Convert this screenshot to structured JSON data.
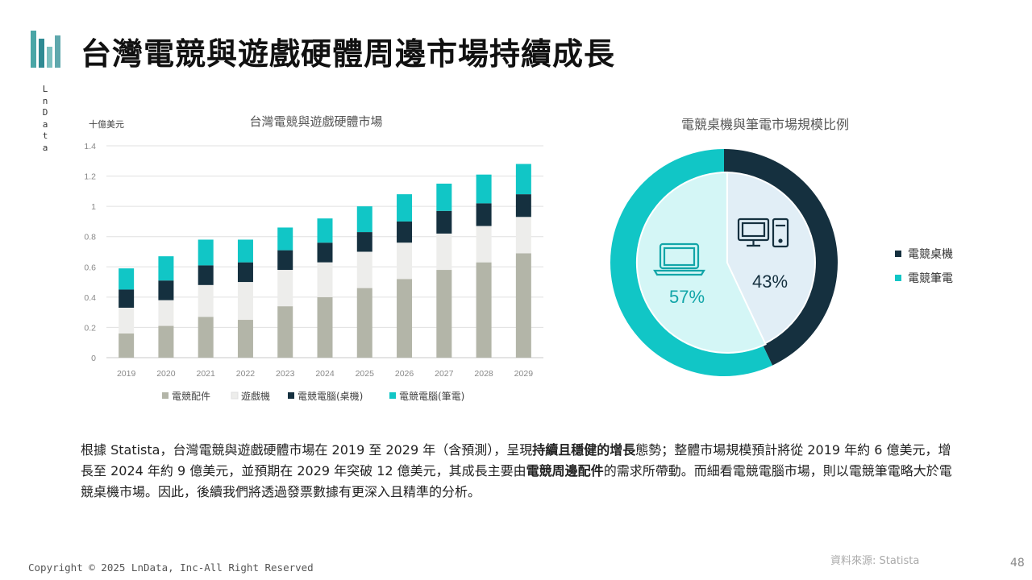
{
  "page": {
    "title": "台灣電競與遊戲硬體周邊市場持續成長",
    "brand_vertical": [
      "L",
      "n",
      "D",
      "a",
      "t",
      "a"
    ],
    "source": "資料來源: Statista",
    "copyright": "Copyright © 2025 LnData, Inc-All Right Reserved",
    "page_number": "48"
  },
  "description": {
    "p1": "根據 Statista，台灣電競與遊戲硬體市場在 2019 至 2029 年（含預測），呈現",
    "b1": "持續且穩健的增長",
    "p2": "態勢；整體市場規模預計將從 2019 年約 6 億美元，增長至 2024 年約 9 億美元，並預期在 2029 年突破 12 億美元，其成長主要由",
    "b2": "電競周邊配件",
    "p3": "的需求所帶動。而細看電競電腦市場，則以電競筆電略大於電競桌機市場。因此，後續我們將透過發票數據有更深入且精準的分析。"
  },
  "colors": {
    "accessories": "#b3b5a8",
    "consoles": "#ededeb",
    "desktop": "#15303f",
    "laptop": "#11c6c6",
    "gridline": "#e0e0e0",
    "donut_inner_desktop": "#e1eef6",
    "donut_inner_laptop": "#d4f6f6"
  },
  "chart_data": [
    {
      "type": "bar",
      "stacked": true,
      "title": "台灣電競與遊戲硬體市場",
      "unit_label": "十億美元",
      "categories": [
        "2019",
        "2020",
        "2021",
        "2022",
        "2023",
        "2024",
        "2025",
        "2026",
        "2027",
        "2028",
        "2029"
      ],
      "ylim": [
        0,
        1.4
      ],
      "yticks": [
        0,
        0.2,
        0.4,
        0.6,
        0.8,
        1,
        1.2,
        1.4
      ],
      "ytick_labels": [
        "0",
        "0.2",
        "0.4",
        "0.6",
        "0.8",
        "1",
        "1.2",
        "1.4"
      ],
      "grid": true,
      "legend_position": "bottom",
      "series": [
        {
          "name": "電競配件",
          "color_key": "accessories",
          "values": [
            0.16,
            0.21,
            0.27,
            0.25,
            0.34,
            0.4,
            0.46,
            0.52,
            0.58,
            0.63,
            0.69
          ]
        },
        {
          "name": "遊戲機",
          "color_key": "consoles",
          "values": [
            0.17,
            0.17,
            0.21,
            0.25,
            0.24,
            0.23,
            0.24,
            0.24,
            0.24,
            0.24,
            0.24
          ]
        },
        {
          "name": "電競電腦(桌機)",
          "color_key": "desktop",
          "values": [
            0.12,
            0.13,
            0.13,
            0.13,
            0.13,
            0.13,
            0.13,
            0.14,
            0.15,
            0.15,
            0.15
          ]
        },
        {
          "name": "電競電腦(筆電)",
          "color_key": "laptop",
          "values": [
            0.14,
            0.16,
            0.17,
            0.15,
            0.15,
            0.16,
            0.17,
            0.18,
            0.18,
            0.19,
            0.2
          ]
        }
      ]
    },
    {
      "type": "pie",
      "donut": true,
      "title": "電競桌機與筆電市場規模比例",
      "legend_position": "right",
      "slices": [
        {
          "name": "電競桌機",
          "value": 43,
          "label": "43%",
          "color_key": "desktop",
          "icon": "desktop-computer-icon"
        },
        {
          "name": "電競筆電",
          "value": 57,
          "label": "57%",
          "color_key": "laptop",
          "icon": "laptop-icon"
        }
      ]
    }
  ]
}
